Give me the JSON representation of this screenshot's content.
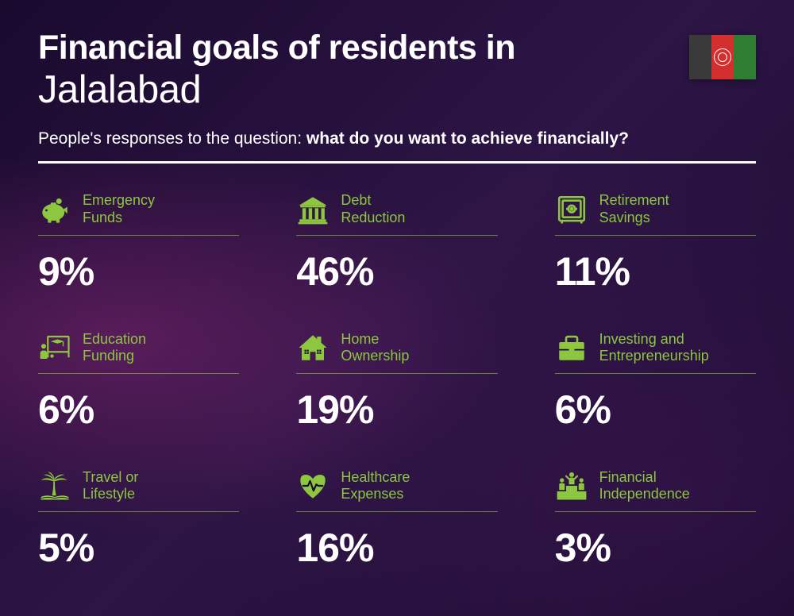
{
  "title_line1": "Financial goals of residents in",
  "title_line2": "Jalalabad",
  "subtitle_prefix": "People's responses to the question: ",
  "subtitle_bold": "what do you want to achieve financially?",
  "accent_color": "#8dc63f",
  "text_color": "#ffffff",
  "flag": {
    "stripes": [
      "#3a3a3a",
      "#d32f2f",
      "#2e7d32"
    ]
  },
  "items": [
    {
      "label": "Emergency Funds",
      "value": "9%",
      "icon": "piggy-bank"
    },
    {
      "label": "Debt Reduction",
      "value": "46%",
      "icon": "bank"
    },
    {
      "label": "Retirement Savings",
      "value": "11%",
      "icon": "safe"
    },
    {
      "label": "Education Funding",
      "value": "6%",
      "icon": "education"
    },
    {
      "label": "Home Ownership",
      "value": "19%",
      "icon": "house"
    },
    {
      "label": "Investing and Entrepreneurship",
      "value": "6%",
      "icon": "briefcase"
    },
    {
      "label": "Travel or Lifestyle",
      "value": "5%",
      "icon": "palm"
    },
    {
      "label": "Healthcare Expenses",
      "value": "16%",
      "icon": "heart"
    },
    {
      "label": "Financial Independence",
      "value": "3%",
      "icon": "podium"
    }
  ]
}
